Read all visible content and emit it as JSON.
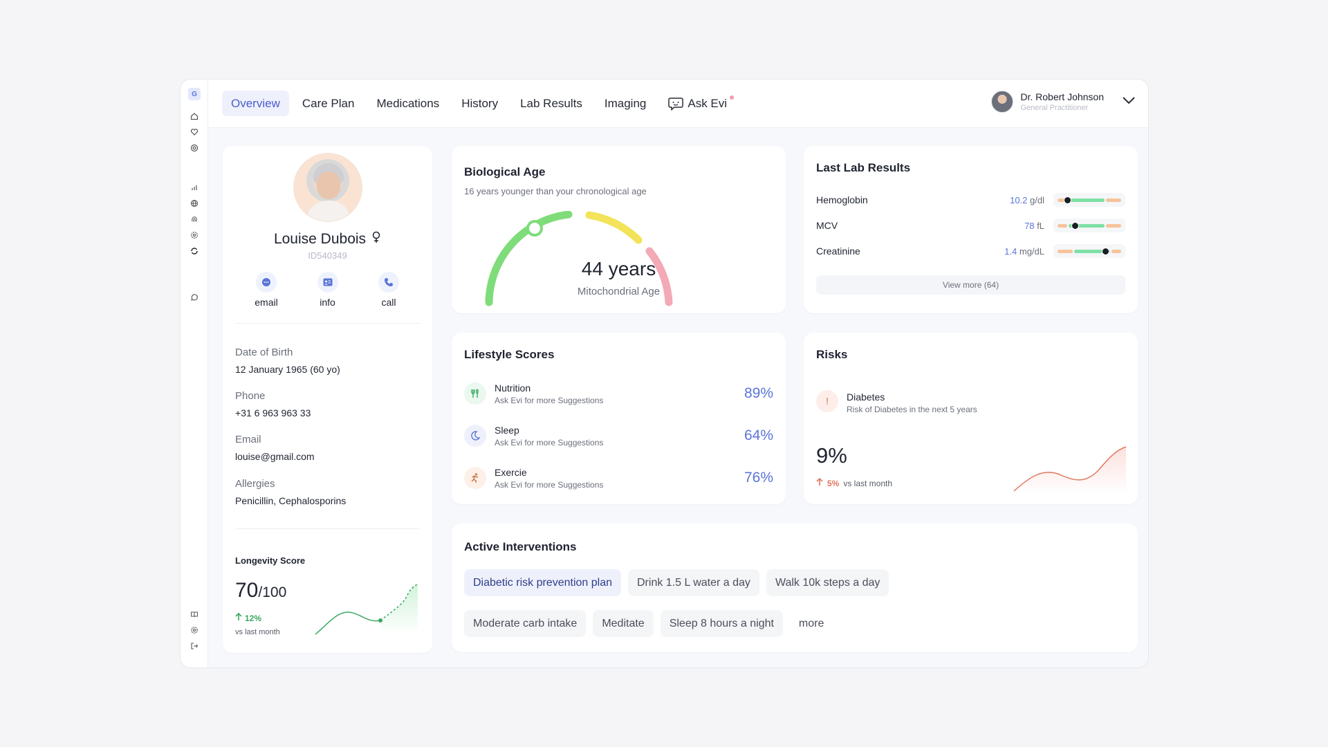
{
  "nav": {
    "logo_letter": "G",
    "tabs": [
      {
        "label": "Overview",
        "active": true
      },
      {
        "label": "Care Plan"
      },
      {
        "label": "Medications"
      },
      {
        "label": "History"
      },
      {
        "label": "Lab Results"
      },
      {
        "label": "Imaging"
      },
      {
        "label": "Ask Evi",
        "badge": true
      }
    ],
    "doctor": {
      "name": "Dr. Robert Johnson",
      "role": "General Practitioner"
    }
  },
  "patient": {
    "name": "Louise Dubois",
    "id": "ID540349",
    "actions": [
      "email",
      "info",
      "call"
    ],
    "fields": [
      {
        "label": "Date of  Birth",
        "value": "12 January 1965 (60 yo)"
      },
      {
        "label": "Phone",
        "value": "+31 6 963 963 33"
      },
      {
        "label": "Email",
        "value": "louise@gmail.com"
      },
      {
        "label": "Allergies",
        "value": "Penicillin, Cephalosporins"
      }
    ],
    "longevity": {
      "title": "Longevity Score",
      "score": "70",
      "max": "/100",
      "delta": "12%",
      "vs": "vs last month"
    }
  },
  "bio_age": {
    "title": "Biological Age",
    "subtitle": "16 years younger than your chronological age",
    "value": "44 years",
    "label": "Mitochondrial Age",
    "colors": {
      "green": "#7fdc7a",
      "yellow": "#f2e35a",
      "pink": "#f3a9b6"
    }
  },
  "lab": {
    "title": "Last Lab Results",
    "rows": [
      {
        "name": "Hemoglobin",
        "value": "10.2",
        "unit": "g/dl",
        "marker": 0.15
      },
      {
        "name": "MCV",
        "value": "78",
        "unit": "fL",
        "marker": 0.25
      },
      {
        "name": "Creatinine",
        "value": "1.4",
        "unit": "mg/dL",
        "marker": 0.72
      }
    ],
    "view_more": "View more (64)"
  },
  "lifestyle": {
    "title": "Lifestyle Scores",
    "rows": [
      {
        "name": "Nutrition",
        "sub": "Ask Evi for more Suggestions",
        "pct": "89%"
      },
      {
        "name": "Sleep",
        "sub": "Ask Evi for more Suggestions",
        "pct": "64%"
      },
      {
        "name": "Exercie",
        "sub": "Ask Evi for more Suggestions",
        "pct": "76%"
      }
    ]
  },
  "risks": {
    "title": "Risks",
    "name": "Diabetes",
    "sub": "Risk of Diabetes in the next 5 years",
    "pct": "9%",
    "delta": "5%",
    "vs": "vs last month"
  },
  "interventions": {
    "title": "Active Interventions",
    "row1": [
      "Diabetic risk prevention plan",
      "Drink 1.5 L water a day",
      "Walk 10k steps a day"
    ],
    "row2": [
      "Moderate  carb intake",
      "Meditate",
      "Sleep 8 hours a night",
      "more"
    ]
  }
}
